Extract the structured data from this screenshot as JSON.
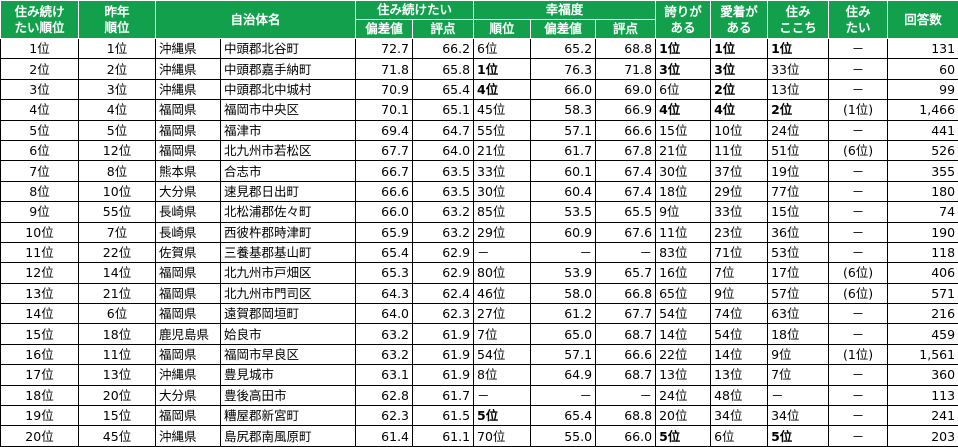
{
  "table": {
    "header": {
      "rank": "住み続け\nたい順位",
      "last_year": "昨年\n順位",
      "municipality": "自治体名",
      "stay": "住み続けたい",
      "stay_dev": "偏差値",
      "stay_score": "評点",
      "happiness": "幸福度",
      "happy_rank": "順位",
      "happy_dev": "偏差値",
      "happy_score": "評点",
      "pride": "誇りが\nある",
      "attachment": "愛着が\nある",
      "comfort": "住み\nここち",
      "want_live": "住み\nたい",
      "responses": "回答数"
    },
    "rows": [
      [
        "1位",
        "1位",
        "沖縄県",
        "中頭郡北谷町",
        "72.7",
        "66.2",
        "6位",
        "65.2",
        "68.8",
        "1位",
        "1位",
        "1位",
        "－",
        "131"
      ],
      [
        "2位",
        "2位",
        "沖縄県",
        "中頭郡嘉手納町",
        "71.8",
        "65.8",
        "1位",
        "76.3",
        "71.8",
        "3位",
        "3位",
        "33位",
        "－",
        "60"
      ],
      [
        "3位",
        "3位",
        "沖縄県",
        "中頭郡北中城村",
        "70.9",
        "65.4",
        "4位",
        "66.0",
        "69.0",
        "6位",
        "2位",
        "13位",
        "－",
        "99"
      ],
      [
        "4位",
        "4位",
        "福岡県",
        "福岡市中央区",
        "70.1",
        "65.1",
        "45位",
        "58.3",
        "66.9",
        "4位",
        "4位",
        "2位",
        "(1位)",
        "1,466"
      ],
      [
        "5位",
        "5位",
        "福岡県",
        "福津市",
        "69.4",
        "64.7",
        "55位",
        "57.1",
        "66.6",
        "15位",
        "10位",
        "24位",
        "－",
        "441"
      ],
      [
        "6位",
        "12位",
        "福岡県",
        "北九州市若松区",
        "67.7",
        "64.0",
        "21位",
        "61.7",
        "67.8",
        "21位",
        "11位",
        "51位",
        "(6位)",
        "526"
      ],
      [
        "7位",
        "8位",
        "熊本県",
        "合志市",
        "66.7",
        "63.5",
        "33位",
        "60.1",
        "67.4",
        "30位",
        "37位",
        "19位",
        "－",
        "355"
      ],
      [
        "8位",
        "10位",
        "大分県",
        "速見郡日出町",
        "66.6",
        "63.5",
        "30位",
        "60.4",
        "67.4",
        "18位",
        "29位",
        "77位",
        "－",
        "180"
      ],
      [
        "9位",
        "55位",
        "長崎県",
        "北松浦郡佐々町",
        "66.0",
        "63.2",
        "85位",
        "53.5",
        "65.5",
        "9位",
        "33位",
        "15位",
        "－",
        "74"
      ],
      [
        "10位",
        "7位",
        "長崎県",
        "西彼杵郡時津町",
        "65.9",
        "63.2",
        "29位",
        "60.9",
        "67.6",
        "11位",
        "23位",
        "36位",
        "－",
        "190"
      ],
      [
        "11位",
        "22位",
        "佐賀県",
        "三養基郡基山町",
        "65.4",
        "62.9",
        "－",
        "－",
        "－",
        "83位",
        "71位",
        "53位",
        "－",
        "118"
      ],
      [
        "12位",
        "14位",
        "福岡県",
        "北九州市戸畑区",
        "65.3",
        "62.9",
        "80位",
        "53.9",
        "65.7",
        "16位",
        "7位",
        "17位",
        "(6位)",
        "406"
      ],
      [
        "13位",
        "21位",
        "福岡県",
        "北九州市門司区",
        "64.3",
        "62.4",
        "46位",
        "58.0",
        "66.8",
        "65位",
        "9位",
        "57位",
        "(6位)",
        "571"
      ],
      [
        "14位",
        "6位",
        "福岡県",
        "遠賀郡岡垣町",
        "64.0",
        "62.3",
        "27位",
        "61.2",
        "67.7",
        "54位",
        "74位",
        "63位",
        "－",
        "216"
      ],
      [
        "15位",
        "18位",
        "鹿児島県",
        "姶良市",
        "63.2",
        "61.9",
        "7位",
        "65.0",
        "68.7",
        "14位",
        "54位",
        "18位",
        "－",
        "459"
      ],
      [
        "16位",
        "11位",
        "福岡県",
        "福岡市早良区",
        "63.2",
        "61.9",
        "54位",
        "57.1",
        "66.6",
        "22位",
        "14位",
        "9位",
        "(1位)",
        "1,561"
      ],
      [
        "17位",
        "13位",
        "沖縄県",
        "豊見城市",
        "63.1",
        "61.9",
        "8位",
        "64.9",
        "68.7",
        "13位",
        "13位",
        "7位",
        "－",
        "360"
      ],
      [
        "18位",
        "20位",
        "大分県",
        "豊後高田市",
        "62.8",
        "61.7",
        "－",
        "－",
        "－",
        "24位",
        "48位",
        "－",
        "－",
        "113"
      ],
      [
        "19位",
        "15位",
        "福岡県",
        "糟屋郡新宮町",
        "62.3",
        "61.5",
        "5位",
        "65.4",
        "68.8",
        "20位",
        "34位",
        "34位",
        "－",
        "241"
      ],
      [
        "20位",
        "45位",
        "沖縄県",
        "島尻郡南風原町",
        "61.4",
        "61.1",
        "70位",
        "55.0",
        "66.0",
        "5位",
        "6位",
        "5位",
        "－",
        "203"
      ]
    ]
  }
}
